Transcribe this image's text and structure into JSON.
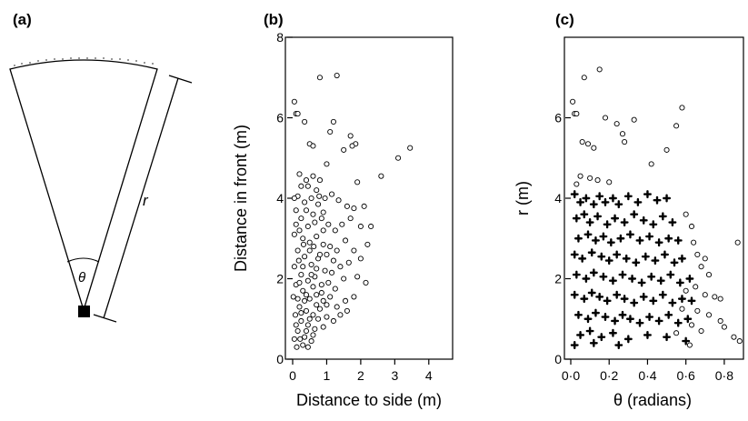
{
  "panels": {
    "a": {
      "letter": "(a)",
      "r_label": "r",
      "theta_label": "θ"
    },
    "b": {
      "letter": "(b)"
    },
    "c": {
      "letter": "(c)"
    }
  },
  "colors": {
    "ink": "#000000",
    "background": "#ffffff"
  },
  "chart_data": [
    {
      "id": "b",
      "type": "scatter",
      "title": "",
      "xlabel": "Distance to side (m)",
      "ylabel": "Distance in front (m)",
      "xlim": [
        0,
        4.7
      ],
      "ylim": [
        0,
        8
      ],
      "xticks": [
        0,
        1,
        2,
        3,
        4
      ],
      "yticks": [
        0,
        2,
        4,
        6,
        8
      ],
      "grid": false,
      "marker": "open-circle",
      "points": [
        [
          0.05,
          6.4
        ],
        [
          0.1,
          6.1
        ],
        [
          0.15,
          6.1
        ],
        [
          0.35,
          5.9
        ],
        [
          0.5,
          5.35
        ],
        [
          0.6,
          5.3
        ],
        [
          0.8,
          7.0
        ],
        [
          1.3,
          7.05
        ],
        [
          1.2,
          5.9
        ],
        [
          1.1,
          5.65
        ],
        [
          1.7,
          5.55
        ],
        [
          1.85,
          5.35
        ],
        [
          1.75,
          5.3
        ],
        [
          1.5,
          5.2
        ],
        [
          3.45,
          5.25
        ],
        [
          3.1,
          5.0
        ],
        [
          2.6,
          4.55
        ],
        [
          1.0,
          4.85
        ],
        [
          1.9,
          4.4
        ],
        [
          0.2,
          4.6
        ],
        [
          0.4,
          4.45
        ],
        [
          0.6,
          4.55
        ],
        [
          0.8,
          4.45
        ],
        [
          0.7,
          4.2
        ],
        [
          0.25,
          4.3
        ],
        [
          0.45,
          4.3
        ],
        [
          0.15,
          4.05
        ],
        [
          0.35,
          3.9
        ],
        [
          0.55,
          4.0
        ],
        [
          0.75,
          3.85
        ],
        [
          0.95,
          4.0
        ],
        [
          1.15,
          4.1
        ],
        [
          1.35,
          3.95
        ],
        [
          1.6,
          3.8
        ],
        [
          1.8,
          3.75
        ],
        [
          2.1,
          3.8
        ],
        [
          2.3,
          3.3
        ],
        [
          2.0,
          3.3
        ],
        [
          1.7,
          3.5
        ],
        [
          1.45,
          3.35
        ],
        [
          1.25,
          3.2
        ],
        [
          1.05,
          3.35
        ],
        [
          0.85,
          3.5
        ],
        [
          0.65,
          3.4
        ],
        [
          0.45,
          3.3
        ],
        [
          0.25,
          3.5
        ],
        [
          0.1,
          3.35
        ],
        [
          0.05,
          3.1
        ],
        [
          0.3,
          3.0
        ],
        [
          0.5,
          2.9
        ],
        [
          0.7,
          3.05
        ],
        [
          0.9,
          2.85
        ],
        [
          1.1,
          2.8
        ],
        [
          1.3,
          2.7
        ],
        [
          1.55,
          2.95
        ],
        [
          1.8,
          2.7
        ],
        [
          2.2,
          2.85
        ],
        [
          2.0,
          2.5
        ],
        [
          1.65,
          2.4
        ],
        [
          1.4,
          2.3
        ],
        [
          1.2,
          2.45
        ],
        [
          0.95,
          2.2
        ],
        [
          0.75,
          2.5
        ],
        [
          0.55,
          2.35
        ],
        [
          0.35,
          2.55
        ],
        [
          0.15,
          2.7
        ],
        [
          0.05,
          2.3
        ],
        [
          0.25,
          2.1
        ],
        [
          0.45,
          1.95
        ],
        [
          0.65,
          2.05
        ],
        [
          0.85,
          1.85
        ],
        [
          1.05,
          1.9
        ],
        [
          1.25,
          1.75
        ],
        [
          1.5,
          2.0
        ],
        [
          1.9,
          2.05
        ],
        [
          2.15,
          1.9
        ],
        [
          1.8,
          1.55
        ],
        [
          1.55,
          1.45
        ],
        [
          1.3,
          1.3
        ],
        [
          1.1,
          1.55
        ],
        [
          0.9,
          1.45
        ],
        [
          0.7,
          1.6
        ],
        [
          0.5,
          1.5
        ],
        [
          0.3,
          1.7
        ],
        [
          0.1,
          1.85
        ],
        [
          0.02,
          1.55
        ],
        [
          0.2,
          1.3
        ],
        [
          0.4,
          1.2
        ],
        [
          0.6,
          1.1
        ],
        [
          0.8,
          1.25
        ],
        [
          1.0,
          1.05
        ],
        [
          1.2,
          0.95
        ],
        [
          0.9,
          0.8
        ],
        [
          0.65,
          0.75
        ],
        [
          0.45,
          0.85
        ],
        [
          0.25,
          0.95
        ],
        [
          0.08,
          1.1
        ],
        [
          0.15,
          0.7
        ],
        [
          0.35,
          0.55
        ],
        [
          0.55,
          0.45
        ],
        [
          0.3,
          0.35
        ],
        [
          0.12,
          0.3
        ],
        [
          0.45,
          0.3
        ],
        [
          0.22,
          0.5
        ],
        [
          0.05,
          0.5
        ],
        [
          0.6,
          0.6
        ],
        [
          0.75,
          1.0
        ],
        [
          1.4,
          1.1
        ],
        [
          1.6,
          1.2
        ],
        [
          0.05,
          4.0
        ],
        [
          0.1,
          3.7
        ],
        [
          0.2,
          3.2
        ],
        [
          0.4,
          3.7
        ],
        [
          0.6,
          3.6
        ],
        [
          0.9,
          3.2
        ],
        [
          1.0,
          2.6
        ],
        [
          0.3,
          2.3
        ],
        [
          0.5,
          2.7
        ],
        [
          0.8,
          2.6
        ],
        [
          1.15,
          2.15
        ],
        [
          0.7,
          2.25
        ],
        [
          0.2,
          1.9
        ],
        [
          0.4,
          1.6
        ],
        [
          0.6,
          1.8
        ],
        [
          0.85,
          1.65
        ],
        [
          1.0,
          1.35
        ],
        [
          0.35,
          1.45
        ],
        [
          0.15,
          1.5
        ],
        [
          0.5,
          1.0
        ],
        [
          0.7,
          1.35
        ],
        [
          0.25,
          1.15
        ],
        [
          0.1,
          0.85
        ],
        [
          0.4,
          0.7
        ],
        [
          0.55,
          2.1
        ],
        [
          0.32,
          2.85
        ],
        [
          0.18,
          2.45
        ],
        [
          0.62,
          2.8
        ],
        [
          0.9,
          3.65
        ],
        [
          0.78,
          4.05
        ]
      ]
    },
    {
      "id": "c",
      "type": "scatter",
      "title": "",
      "xlabel": "θ (radians)",
      "ylabel": "r (m)",
      "xlim": [
        0,
        0.9
      ],
      "ylim": [
        0,
        8
      ],
      "xticks": [
        "0·0",
        "0·2",
        "0·4",
        "0·6",
        "0·8"
      ],
      "xtick_values": [
        0,
        0.2,
        0.4,
        0.6,
        0.8
      ],
      "yticks": [
        0,
        2,
        4,
        6
      ],
      "grid": false,
      "series": [
        {
          "marker": "filled-cross",
          "points": [
            [
              0.02,
              4.1
            ],
            [
              0.05,
              3.9
            ],
            [
              0.08,
              4.0
            ],
            [
              0.12,
              3.85
            ],
            [
              0.15,
              4.05
            ],
            [
              0.18,
              3.9
            ],
            [
              0.22,
              4.0
            ],
            [
              0.25,
              3.85
            ],
            [
              0.3,
              4.05
            ],
            [
              0.35,
              3.9
            ],
            [
              0.4,
              4.1
            ],
            [
              0.45,
              3.95
            ],
            [
              0.5,
              4.0
            ],
            [
              0.03,
              3.5
            ],
            [
              0.07,
              3.6
            ],
            [
              0.1,
              3.4
            ],
            [
              0.14,
              3.55
            ],
            [
              0.19,
              3.35
            ],
            [
              0.23,
              3.5
            ],
            [
              0.28,
              3.4
            ],
            [
              0.33,
              3.6
            ],
            [
              0.38,
              3.45
            ],
            [
              0.43,
              3.35
            ],
            [
              0.48,
              3.55
            ],
            [
              0.53,
              3.4
            ],
            [
              0.04,
              3.0
            ],
            [
              0.09,
              3.1
            ],
            [
              0.13,
              2.95
            ],
            [
              0.17,
              3.05
            ],
            [
              0.21,
              2.9
            ],
            [
              0.26,
              3.0
            ],
            [
              0.31,
              3.1
            ],
            [
              0.36,
              2.95
            ],
            [
              0.41,
              3.05
            ],
            [
              0.46,
              2.9
            ],
            [
              0.51,
              3.0
            ],
            [
              0.56,
              2.95
            ],
            [
              0.02,
              2.6
            ],
            [
              0.06,
              2.5
            ],
            [
              0.11,
              2.65
            ],
            [
              0.16,
              2.55
            ],
            [
              0.2,
              2.45
            ],
            [
              0.24,
              2.6
            ],
            [
              0.29,
              2.5
            ],
            [
              0.34,
              2.4
            ],
            [
              0.39,
              2.55
            ],
            [
              0.44,
              2.45
            ],
            [
              0.49,
              2.6
            ],
            [
              0.54,
              2.4
            ],
            [
              0.58,
              2.5
            ],
            [
              0.03,
              2.1
            ],
            [
              0.08,
              2.0
            ],
            [
              0.12,
              2.15
            ],
            [
              0.17,
              2.05
            ],
            [
              0.22,
              1.95
            ],
            [
              0.27,
              2.1
            ],
            [
              0.32,
              2.0
            ],
            [
              0.37,
              1.9
            ],
            [
              0.42,
              2.05
            ],
            [
              0.47,
              1.95
            ],
            [
              0.52,
              2.1
            ],
            [
              0.57,
              1.9
            ],
            [
              0.62,
              2.0
            ],
            [
              0.02,
              1.6
            ],
            [
              0.07,
              1.5
            ],
            [
              0.11,
              1.65
            ],
            [
              0.15,
              1.55
            ],
            [
              0.19,
              1.45
            ],
            [
              0.24,
              1.6
            ],
            [
              0.28,
              1.5
            ],
            [
              0.33,
              1.4
            ],
            [
              0.38,
              1.55
            ],
            [
              0.43,
              1.45
            ],
            [
              0.48,
              1.6
            ],
            [
              0.53,
              1.4
            ],
            [
              0.58,
              1.5
            ],
            [
              0.63,
              1.45
            ],
            [
              0.04,
              1.1
            ],
            [
              0.09,
              1.0
            ],
            [
              0.13,
              1.15
            ],
            [
              0.18,
              1.05
            ],
            [
              0.23,
              0.95
            ],
            [
              0.27,
              1.1
            ],
            [
              0.31,
              1.0
            ],
            [
              0.36,
              0.9
            ],
            [
              0.41,
              1.05
            ],
            [
              0.46,
              0.95
            ],
            [
              0.51,
              1.1
            ],
            [
              0.56,
              0.9
            ],
            [
              0.61,
              1.0
            ],
            [
              0.05,
              0.6
            ],
            [
              0.1,
              0.7
            ],
            [
              0.16,
              0.55
            ],
            [
              0.22,
              0.65
            ],
            [
              0.3,
              0.5
            ],
            [
              0.4,
              0.6
            ],
            [
              0.5,
              0.55
            ],
            [
              0.6,
              0.45
            ],
            [
              0.02,
              0.35
            ],
            [
              0.12,
              0.4
            ],
            [
              0.25,
              0.35
            ]
          ]
        },
        {
          "marker": "open-circle",
          "points": [
            [
              0.01,
              6.4
            ],
            [
              0.02,
              6.1
            ],
            [
              0.03,
              6.1
            ],
            [
              0.06,
              5.4
            ],
            [
              0.09,
              5.35
            ],
            [
              0.07,
              7.0
            ],
            [
              0.15,
              7.2
            ],
            [
              0.18,
              6.0
            ],
            [
              0.24,
              5.85
            ],
            [
              0.27,
              5.6
            ],
            [
              0.28,
              5.4
            ],
            [
              0.33,
              5.95
            ],
            [
              0.42,
              4.85
            ],
            [
              0.55,
              5.8
            ],
            [
              0.58,
              6.25
            ],
            [
              0.5,
              5.2
            ],
            [
              0.12,
              5.25
            ],
            [
              0.05,
              4.55
            ],
            [
              0.1,
              4.5
            ],
            [
              0.14,
              4.45
            ],
            [
              0.2,
              4.4
            ],
            [
              0.03,
              4.35
            ],
            [
              0.6,
              3.6
            ],
            [
              0.63,
              3.3
            ],
            [
              0.64,
              2.9
            ],
            [
              0.66,
              2.6
            ],
            [
              0.7,
              2.5
            ],
            [
              0.68,
              2.3
            ],
            [
              0.72,
              2.1
            ],
            [
              0.65,
              1.8
            ],
            [
              0.6,
              1.7
            ],
            [
              0.7,
              1.6
            ],
            [
              0.75,
              1.55
            ],
            [
              0.78,
              1.5
            ],
            [
              0.66,
              1.2
            ],
            [
              0.72,
              1.1
            ],
            [
              0.78,
              0.95
            ],
            [
              0.63,
              0.85
            ],
            [
              0.68,
              0.7
            ],
            [
              0.8,
              0.8
            ],
            [
              0.85,
              0.55
            ],
            [
              0.88,
              0.45
            ],
            [
              0.87,
              2.9
            ],
            [
              0.62,
              0.35
            ],
            [
              0.55,
              0.65
            ],
            [
              0.58,
              1.25
            ]
          ]
        }
      ]
    }
  ]
}
